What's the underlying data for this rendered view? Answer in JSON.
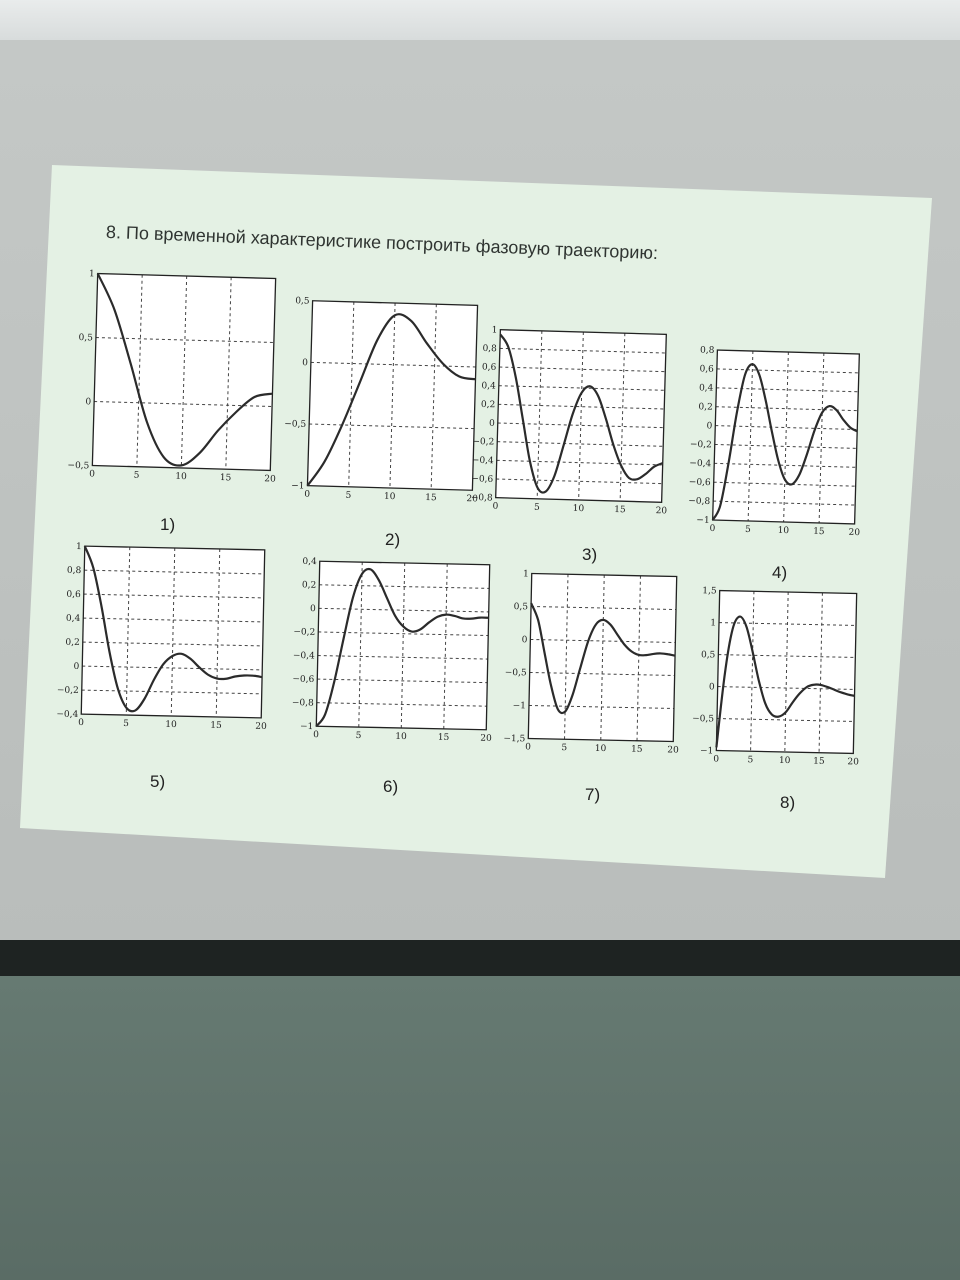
{
  "slide": {
    "title": "8. По временной характеристике построить фазовую траекторию:"
  },
  "chart_data": [
    {
      "type": "line",
      "label": "1)",
      "xlim": [
        0,
        20
      ],
      "ylim": [
        -0.5,
        1
      ],
      "xticks": [
        "0",
        "5",
        "10",
        "15",
        "20"
      ],
      "yticks": [
        "1",
        "0,5",
        "0",
        "−0,5"
      ],
      "grid": true,
      "x": [
        0,
        2,
        4,
        6,
        8,
        10,
        12,
        14,
        16,
        18,
        20
      ],
      "y": [
        1,
        0.72,
        0.3,
        -0.15,
        -0.42,
        -0.48,
        -0.38,
        -0.2,
        -0.05,
        0.07,
        0.1
      ]
    },
    {
      "type": "line",
      "label": "2)",
      "xlim": [
        0,
        20
      ],
      "ylim": [
        -1,
        0.5
      ],
      "xticks": [
        "0",
        "5",
        "10",
        "15",
        "20"
      ],
      "yticks": [
        "0,5",
        "0",
        "−0,5",
        "−1"
      ],
      "grid": true,
      "x": [
        0,
        2,
        4,
        6,
        8,
        10,
        12,
        14,
        16,
        18,
        20
      ],
      "y": [
        -1,
        -0.8,
        -0.5,
        -0.15,
        0.2,
        0.4,
        0.36,
        0.18,
        0.02,
        -0.08,
        -0.1
      ]
    },
    {
      "type": "line",
      "label": "3)",
      "xlim": [
        0,
        20
      ],
      "ylim": [
        -0.8,
        1
      ],
      "xticks": [
        "0",
        "5",
        "10",
        "15",
        "20"
      ],
      "yticks": [
        "1",
        "0,8",
        "0,6",
        "0,4",
        "0,2",
        "0",
        "−0,2",
        "−0,4",
        "−0,6",
        "−0,8"
      ],
      "grid": true,
      "x": [
        0,
        1,
        2,
        3,
        4,
        5,
        6,
        7,
        8,
        9,
        10,
        11,
        12,
        13,
        14,
        15,
        16,
        17,
        18,
        19,
        20
      ],
      "y": [
        0.95,
        0.82,
        0.5,
        0.05,
        -0.4,
        -0.68,
        -0.72,
        -0.55,
        -0.22,
        0.12,
        0.35,
        0.42,
        0.32,
        0.08,
        -0.2,
        -0.42,
        -0.55,
        -0.56,
        -0.5,
        -0.42,
        -0.38
      ]
    },
    {
      "type": "line",
      "label": "4)",
      "xlim": [
        0,
        20
      ],
      "ylim": [
        -1,
        0.8
      ],
      "xticks": [
        "0",
        "5",
        "10",
        "15",
        "20"
      ],
      "yticks": [
        "0,8",
        "0,6",
        "0,4",
        "0,2",
        "0",
        "−0,2",
        "−0,4",
        "−0,6",
        "−0,8",
        "−1"
      ],
      "grid": true,
      "x": [
        0,
        1,
        2,
        3,
        4,
        5,
        6,
        7,
        8,
        9,
        10,
        11,
        12,
        13,
        14,
        15,
        16,
        17,
        18,
        19,
        20
      ],
      "y": [
        -1,
        -0.85,
        -0.4,
        0.15,
        0.55,
        0.66,
        0.55,
        0.28,
        -0.05,
        -0.35,
        -0.55,
        -0.6,
        -0.5,
        -0.28,
        -0.02,
        0.17,
        0.24,
        0.2,
        0.1,
        0.02,
        -0.02
      ]
    },
    {
      "type": "line",
      "label": "5)",
      "xlim": [
        0,
        20
      ],
      "ylim": [
        -0.4,
        1
      ],
      "xticks": [
        "0",
        "5",
        "10",
        "15",
        "20"
      ],
      "yticks": [
        "1",
        "0,8",
        "0,6",
        "0,4",
        "0,2",
        "0",
        "−0,2",
        "−0,4"
      ],
      "grid": true,
      "x": [
        0,
        1,
        2,
        3,
        4,
        5,
        6,
        7,
        8,
        9,
        10,
        11,
        12,
        13,
        14,
        15,
        16,
        17,
        18,
        19,
        20
      ],
      "y": [
        1,
        0.82,
        0.5,
        0.12,
        -0.18,
        -0.34,
        -0.36,
        -0.26,
        -0.1,
        0.03,
        0.1,
        0.12,
        0.08,
        0.01,
        -0.05,
        -0.08,
        -0.08,
        -0.06,
        -0.05,
        -0.05,
        -0.06
      ]
    },
    {
      "type": "line",
      "label": "6)",
      "xlim": [
        0,
        20
      ],
      "ylim": [
        -1,
        0.4
      ],
      "xticks": [
        "0",
        "5",
        "10",
        "15",
        "20"
      ],
      "yticks": [
        "0,4",
        "0,2",
        "0",
        "−0,2",
        "−0,4",
        "−0,6",
        "−0,8",
        "−1"
      ],
      "grid": true,
      "x": [
        0,
        1,
        2,
        3,
        4,
        5,
        6,
        7,
        8,
        9,
        10,
        11,
        12,
        13,
        14,
        15,
        16,
        17,
        18,
        19,
        20
      ],
      "y": [
        -1,
        -0.9,
        -0.62,
        -0.25,
        0.1,
        0.3,
        0.34,
        0.25,
        0.1,
        -0.05,
        -0.14,
        -0.18,
        -0.16,
        -0.1,
        -0.05,
        -0.03,
        -0.04,
        -0.06,
        -0.06,
        -0.05,
        -0.05
      ]
    },
    {
      "type": "line",
      "label": "7)",
      "xlim": [
        0,
        20
      ],
      "ylim": [
        -1.5,
        1
      ],
      "xticks": [
        "0",
        "5",
        "10",
        "15",
        "20"
      ],
      "yticks": [
        "1",
        "0,5",
        "0",
        "−0,5",
        "−1",
        "−1,5"
      ],
      "grid": true,
      "x": [
        0,
        1,
        2,
        3,
        4,
        5,
        6,
        7,
        8,
        9,
        10,
        11,
        12,
        13,
        14,
        15,
        16,
        17,
        18,
        19,
        20
      ],
      "y": [
        0.55,
        0.3,
        -0.2,
        -0.7,
        -1.05,
        -1.08,
        -0.82,
        -0.4,
        0,
        0.25,
        0.32,
        0.25,
        0.1,
        -0.05,
        -0.15,
        -0.2,
        -0.2,
        -0.18,
        -0.17,
        -0.18,
        -0.2
      ]
    },
    {
      "type": "line",
      "label": "8)",
      "xlim": [
        0,
        20
      ],
      "ylim": [
        -1,
        1.5
      ],
      "xticks": [
        "0",
        "5",
        "10",
        "15",
        "20"
      ],
      "yticks": [
        "1,5",
        "1",
        "0,5",
        "0",
        "−0,5",
        "−1"
      ],
      "grid": true,
      "x": [
        0,
        1,
        2,
        3,
        4,
        5,
        6,
        7,
        8,
        9,
        10,
        11,
        12,
        13,
        14,
        15,
        16,
        17,
        18,
        19,
        20
      ],
      "y": [
        -0.95,
        0.2,
        0.9,
        1.1,
        0.95,
        0.55,
        0.1,
        -0.25,
        -0.42,
        -0.45,
        -0.38,
        -0.22,
        -0.08,
        0.02,
        0.06,
        0.06,
        0.03,
        -0.01,
        -0.05,
        -0.08,
        -0.1
      ]
    }
  ]
}
